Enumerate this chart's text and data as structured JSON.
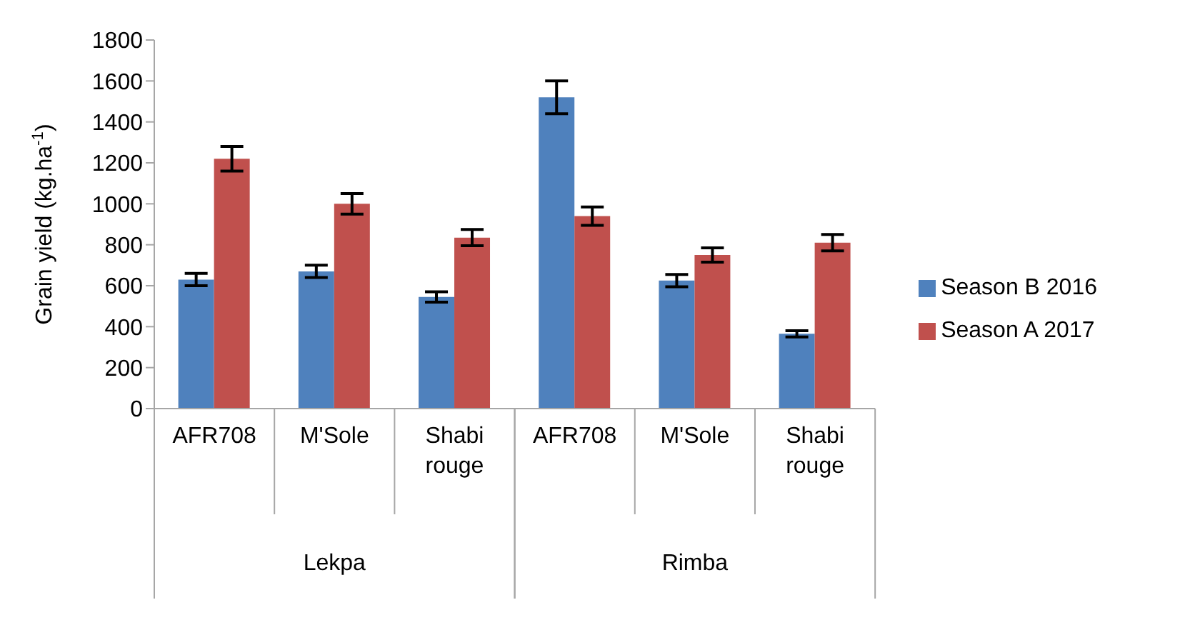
{
  "chart_data": {
    "type": "bar",
    "ylabel": "Grain yield (kg.ha$^{-1}$)",
    "categories": [
      "AFR708",
      "M'Sole",
      "Shabi rouge",
      "AFR708",
      "M'Sole",
      "Shabi rouge"
    ],
    "annotations": [
      "Lekpa",
      "Rimba"
    ],
    "series": [
      {
        "name": "Season B 2016",
        "color": "#4f81bd",
        "values": [
          630,
          670,
          545,
          1520,
          625,
          365
        ],
        "errors": [
          30,
          30,
          25,
          80,
          30,
          15
        ]
      },
      {
        "name": "Season A 2017",
        "color": "#c0504d",
        "values": [
          1220,
          1000,
          835,
          940,
          750,
          810
        ],
        "errors": [
          60,
          50,
          40,
          45,
          35,
          40
        ]
      }
    ],
    "ylim": [
      0,
      1800
    ],
    "yticks": [
      0,
      200,
      400,
      600,
      800,
      1000,
      1200,
      1400,
      1600,
      1800
    ],
    "grid": false,
    "legend": "right"
  }
}
